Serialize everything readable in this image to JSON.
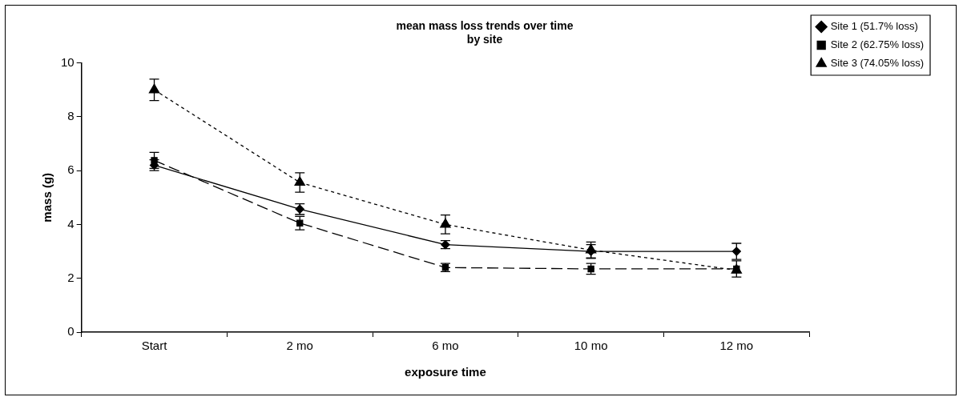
{
  "chart_data": {
    "type": "line",
    "title": [
      "mean mass loss trends over time",
      "by site"
    ],
    "xlabel": "exposure time",
    "ylabel": "mass (g)",
    "categories": [
      "Start",
      "2 mo",
      "6 mo",
      "10 mo",
      "12 mo"
    ],
    "series": [
      {
        "name": "Site 1 (51.7% loss)",
        "color": "#000000",
        "marker": "diamond",
        "line_style": "solid",
        "values": [
          6.2,
          4.57,
          3.25,
          3.0,
          3.0
        ],
        "errors": [
          0.2,
          0.2,
          0.15,
          0.25,
          0.3
        ]
      },
      {
        "name": "Site 2 (62.75% loss)",
        "color": "#000000",
        "marker": "square",
        "line_style": "dashed",
        "values": [
          6.38,
          4.05,
          2.4,
          2.35,
          2.35
        ],
        "errors": [
          0.3,
          0.25,
          0.15,
          0.2,
          0.3
        ]
      },
      {
        "name": "Site 3 (74.05% loss)",
        "color": "#000000",
        "marker": "triangle",
        "line_style": "dotted",
        "values": [
          9.0,
          5.56,
          4.0,
          3.05,
          2.3
        ],
        "errors": [
          0.4,
          0.36,
          0.35,
          0.3,
          null
        ]
      }
    ],
    "ylim": [
      0,
      10
    ],
    "yticks": [
      0,
      2,
      4,
      6,
      8,
      10
    ],
    "grid": false,
    "legend": "top right"
  }
}
